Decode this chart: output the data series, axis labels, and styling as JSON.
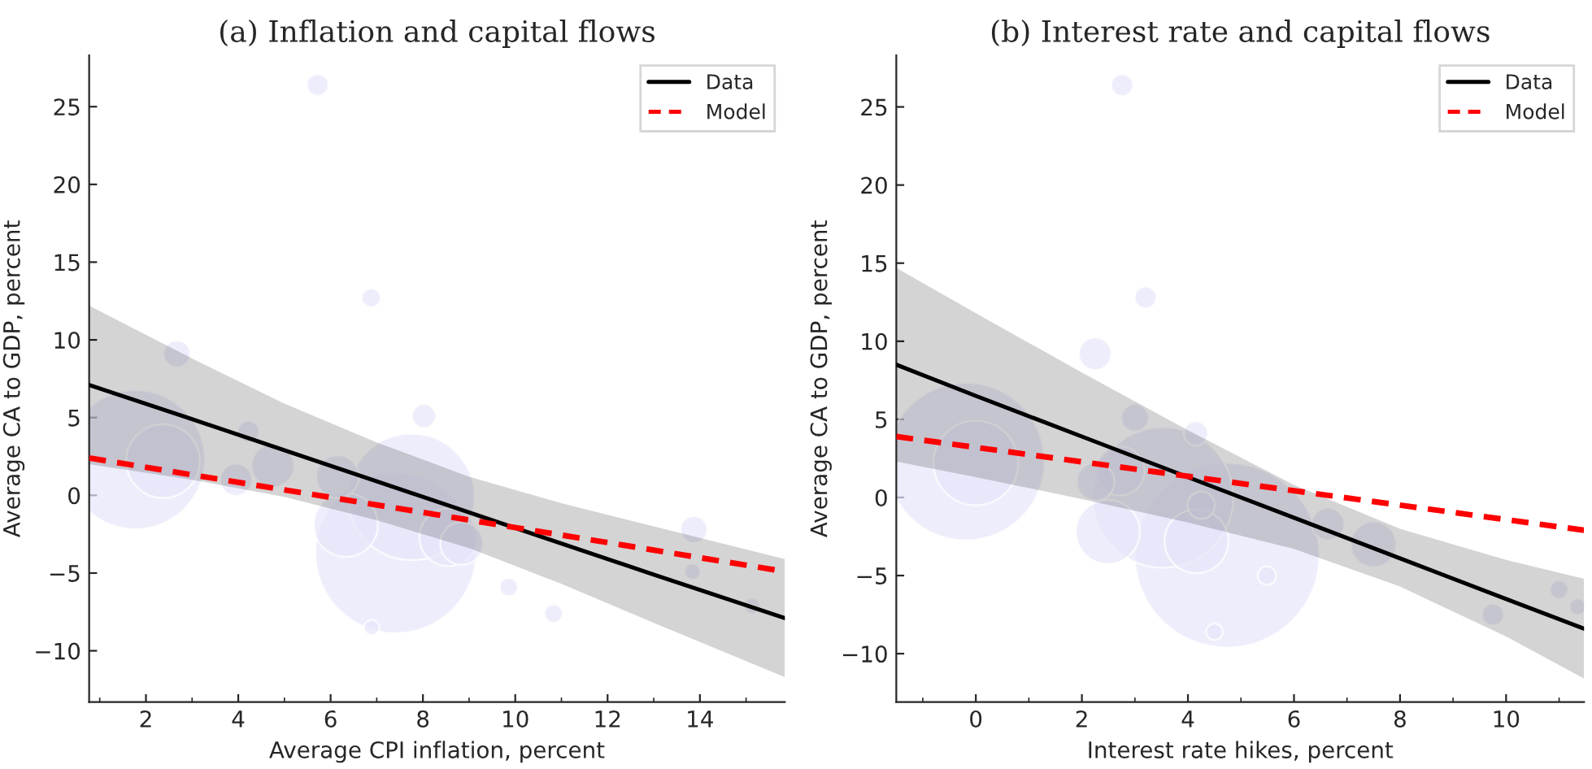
{
  "chart_data": [
    {
      "type": "bubble",
      "title": "(a) Inflation and capital flows",
      "xlabel": "Average CPI inflation, percent",
      "ylabel": "Average CA to GDP, percent",
      "xlim": [
        0.77,
        15.84
      ],
      "ylim": [
        -13.3,
        28.3
      ],
      "xticks": [
        2,
        4,
        6,
        8,
        10,
        12,
        14
      ],
      "yticks": [
        -10,
        -5,
        0,
        5,
        10,
        15,
        20,
        25
      ],
      "legend": "top right",
      "series": [
        {
          "color": "#e6e6fa",
          "x": [
            5.72,
            6.88,
            2.67,
            8.02,
            4.22,
            1.77,
            2.37,
            3.95,
            4.75,
            7.75,
            7.41,
            6.33,
            6.15,
            8.55,
            8.84,
            13.87,
            13.84,
            9.86,
            10.83,
            6.89,
            15.13
          ],
          "values": [
            26.4,
            12.7,
            9.1,
            5.1,
            4.1,
            2.3,
            2.2,
            1.0,
            1.9,
            -0.1,
            -3.7,
            -1.9,
            1.2,
            -2.7,
            -3.1,
            -2.2,
            -4.9,
            -5.9,
            -7.6,
            -8.5,
            -7.1
          ],
          "sizes": [
            0.018,
            0.014,
            0.028,
            0.022,
            0.018,
            0.75,
            0.21,
            0.04,
            0.071,
            0.62,
            1,
            0.16,
            0.071,
            0.13,
            0.071,
            0.028,
            0.01,
            0.013,
            0.013,
            0.009,
            0.01
          ]
        },
        {
          "type": "line",
          "name": "Data",
          "color": "#000000",
          "line_style": "solid",
          "x": [
            0.77,
            3,
            5,
            7,
            9,
            11,
            13,
            15.84
          ],
          "values": [
            7.1,
            4.9,
            2.9,
            0.9,
            -1.1,
            -3.1,
            -5.1,
            -7.9
          ],
          "upper": [
            12.2,
            8.8,
            5.9,
            3.4,
            1.2,
            -0.5,
            -2.0,
            -4.1
          ],
          "lower": [
            2.0,
            1.0,
            -0.1,
            -1.6,
            -3.4,
            -5.7,
            -8.2,
            -11.7
          ]
        },
        {
          "type": "line",
          "name": "Model",
          "color": "#ff0000",
          "line_style": "dashed",
          "x": [
            0.77,
            15.84
          ],
          "values": [
            2.4,
            -4.9
          ]
        }
      ]
    },
    {
      "type": "bubble",
      "title": "(b) Interest rate and capital flows",
      "xlabel": "Interest rate hikes, percent",
      "ylabel": "Average CA to GDP, percent",
      "xlim": [
        -1.5,
        11.47
      ],
      "ylim": [
        -13.1,
        28.3
      ],
      "xticks": [
        0,
        2,
        4,
        6,
        8,
        10
      ],
      "yticks": [
        -10,
        -5,
        0,
        5,
        10,
        15,
        20,
        25
      ],
      "legend": "top right",
      "series": [
        {
          "color": "#e6e6fa",
          "x": [
            2.76,
            3.2,
            2.25,
            3.0,
            4.15,
            -0.19,
            0,
            2.26,
            2.72,
            3.53,
            4.74,
            2.49,
            4.25,
            4.16,
            6.64,
            7.5,
            5.49,
            11.0,
            9.75,
            4.5,
            11.35
          ],
          "values": [
            26.4,
            12.8,
            9.2,
            5.1,
            4.1,
            2.3,
            2.2,
            1.0,
            1.7,
            0,
            -3.7,
            -2.2,
            -0.5,
            -2.8,
            -1.7,
            -3.0,
            -5.0,
            -5.9,
            -7.5,
            -8.6,
            -7.0
          ],
          "sizes": [
            0.014,
            0.014,
            0.031,
            0.022,
            0.017,
            0.73,
            0.21,
            0.042,
            0.07,
            0.58,
            1,
            0.12,
            0.022,
            0.12,
            0.031,
            0.061,
            0.01,
            0.01,
            0.014,
            0.008,
            0.008
          ]
        },
        {
          "type": "line",
          "name": "Data",
          "color": "#000000",
          "line_style": "solid",
          "x": [
            -1.5,
            0,
            2,
            4,
            6,
            8,
            10,
            11.47
          ],
          "values": [
            8.5,
            6.5,
            3.9,
            1.3,
            -1.3,
            -3.9,
            -6.5,
            -8.4
          ],
          "upper": [
            14.7,
            11.8,
            8.0,
            4.3,
            0.8,
            -2.0,
            -4.0,
            -5.2
          ],
          "lower": [
            2.3,
            1.3,
            -0.1,
            -1.6,
            -3.3,
            -5.7,
            -8.9,
            -11.6
          ]
        },
        {
          "type": "line",
          "name": "Model",
          "color": "#ff0000",
          "line_style": "dashed",
          "x": [
            -1.5,
            11.47
          ],
          "values": [
            3.9,
            -2.1
          ]
        }
      ]
    }
  ]
}
